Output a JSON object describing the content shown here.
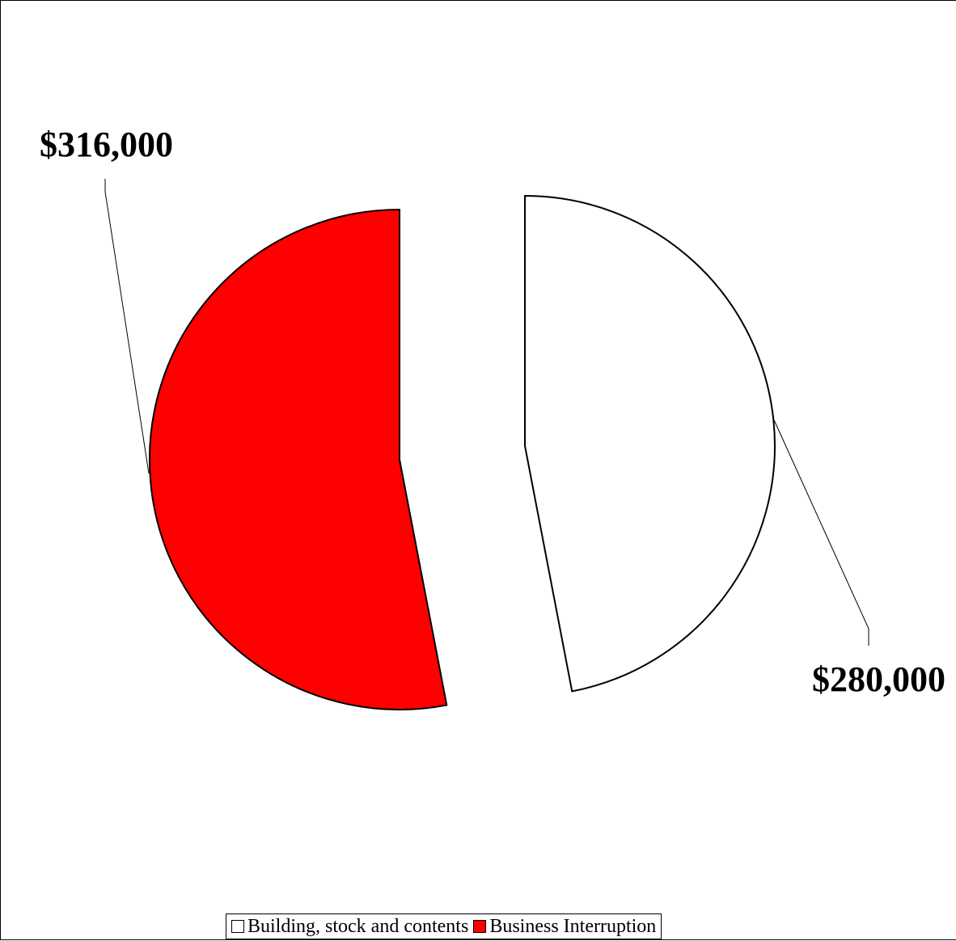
{
  "chart_data": {
    "type": "pie",
    "exploded": true,
    "slices": [
      {
        "label": "Building, stock and contents",
        "value": 280000,
        "display": "$280,000",
        "color": "#ffffff"
      },
      {
        "label": "Business Interruption",
        "value": 316000,
        "display": "$316,000",
        "color": "#ff0000"
      }
    ],
    "legend_position": "bottom"
  },
  "legend": {
    "items": [
      {
        "label": "Building, stock and contents",
        "color": "#ffffff"
      },
      {
        "label": "Business Interruption",
        "color": "#ff0000"
      }
    ]
  }
}
